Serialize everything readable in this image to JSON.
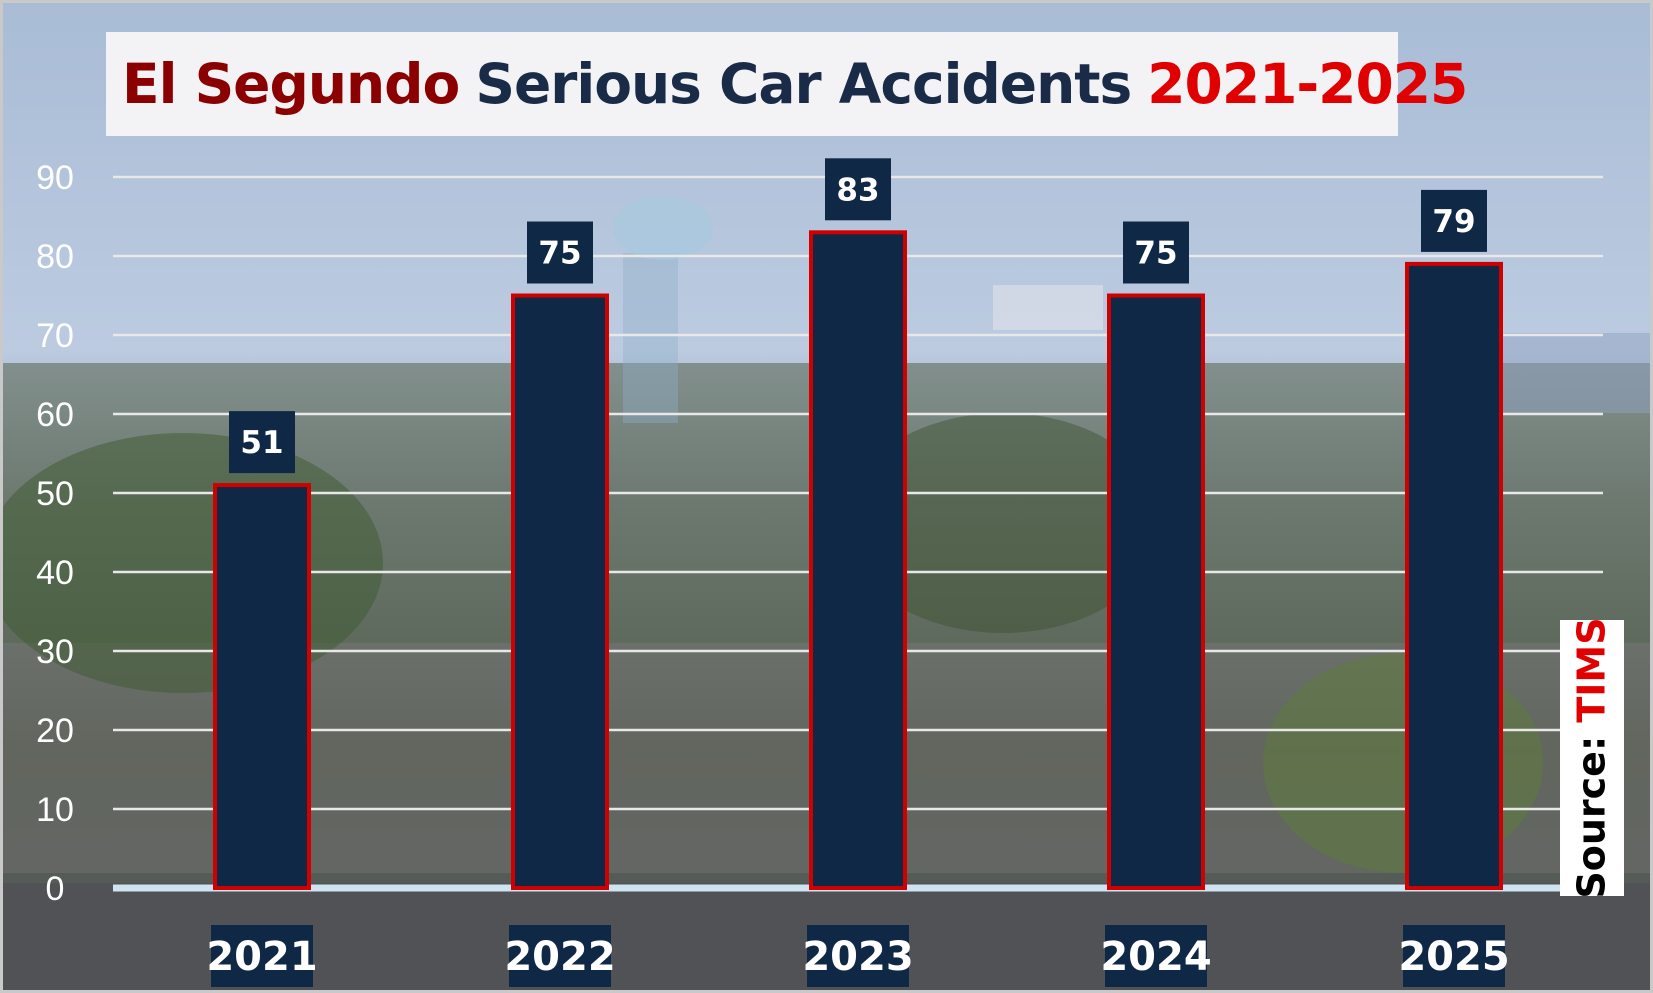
{
  "chart_data": {
    "type": "bar",
    "title_parts": [
      "El Segundo",
      "Serious Car Accidents",
      "2021-2025"
    ],
    "categories": [
      "2021",
      "2022",
      "2023",
      "2024",
      "2025"
    ],
    "values": [
      51,
      75,
      83,
      75,
      79
    ],
    "ylim": [
      0,
      90
    ],
    "yticks": [
      0,
      10,
      20,
      30,
      40,
      50,
      60,
      70,
      80,
      90
    ],
    "grid": true,
    "legend": "none",
    "bar_color": "#0f2845",
    "bar_edge_color": "#d00000",
    "label_color": "#0f2845",
    "title_colors": [
      "#8b0000",
      "#1a2b48",
      "#e00000"
    ]
  },
  "source": {
    "label": "Source:",
    "name": "TIMS"
  }
}
